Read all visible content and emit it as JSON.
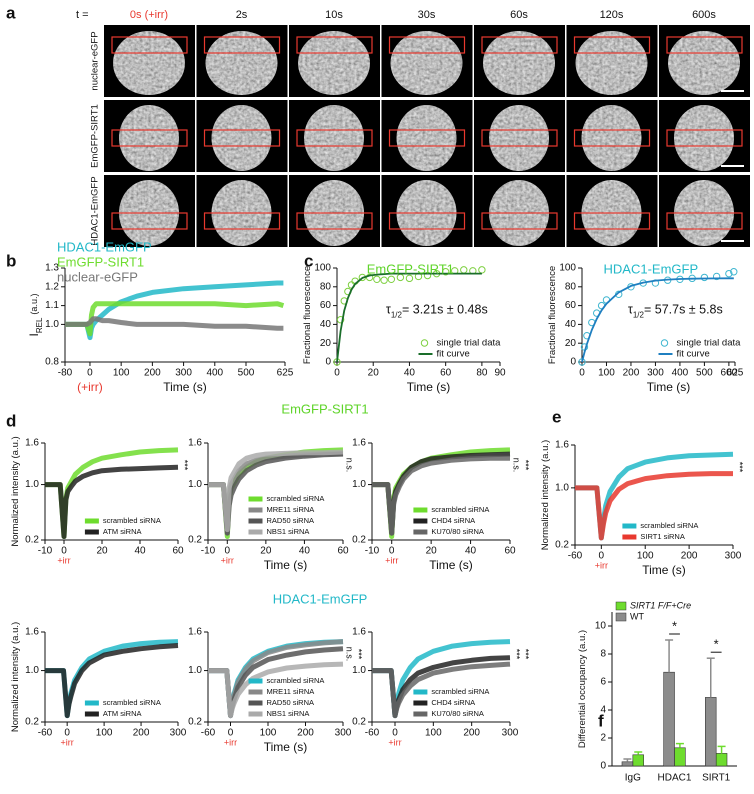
{
  "panel_labels": [
    "a",
    "b",
    "c",
    "d",
    "e",
    "f"
  ],
  "image_grid": {
    "t_label": "t =",
    "times": [
      "0s (+irr)",
      "2s",
      "10s",
      "30s",
      "60s",
      "120s",
      "600s"
    ],
    "rows": [
      "nuclear-eGFP",
      "EmGFP-SIRT1",
      "HDAC1-EmGFP"
    ]
  },
  "panel_d": {
    "top_title": "EmGFP-SIRT1",
    "top_color": "#5fd42a",
    "bottom_title": "HDAC1-EmGFP",
    "bottom_color": "#22b8c8"
  },
  "chart_data": [
    {
      "type": "line",
      "legend_style": "text",
      "bands": true,
      "irr_label": "(+irr)",
      "x": [
        -80,
        -40,
        -10,
        0,
        5,
        10,
        20,
        40,
        60,
        100,
        150,
        200,
        300,
        400,
        500,
        600,
        620
      ],
      "xlim": [
        -80,
        625
      ],
      "xticks": [
        -80,
        0,
        100,
        200,
        300,
        400,
        500,
        625
      ],
      "ylim": [
        0.8,
        1.3
      ],
      "yticks": [
        0.8,
        {
          "value": 1,
          "label": "1.0"
        },
        1.1,
        1.2,
        1.3
      ],
      "xlabel": "Time (s)",
      "ylabel": "I",
      "ylabel_sub": "REL",
      "ylabel_unit": "(a.u.)",
      "series": [
        {
          "name": "HDAC1-EmGFP",
          "color": "#22b8c8",
          "values": [
            1,
            1,
            1,
            0.93,
            0.98,
            1.0,
            1.02,
            1.05,
            1.08,
            1.12,
            1.15,
            1.17,
            1.19,
            1.2,
            1.21,
            1.22,
            1.22
          ]
        },
        {
          "name": "EmGFP-SIRT1",
          "color": "#6edc2e",
          "values": [
            1,
            1,
            1,
            0.95,
            1.05,
            1.09,
            1.11,
            1.11,
            1.11,
            1.11,
            1.11,
            1.11,
            1.11,
            1.11,
            1.1,
            1.11,
            1.1
          ]
        },
        {
          "name": "nuclear-eGFP",
          "color": "#777777",
          "values": [
            1,
            1,
            1,
            1.01,
            1.02,
            1.03,
            1.03,
            1.02,
            1.02,
            1.01,
            1.0,
            1.0,
            1.0,
            0.99,
            0.99,
            0.98,
            0.98
          ]
        }
      ]
    },
    {
      "type": "line",
      "title": "EmGFP-SIRT1",
      "title_color": "#5fd42a",
      "legend": "lower right",
      "annotation": "τ",
      "annotation_sub": "1/2",
      "annotation_rest": "= 3.21s ± 0.48s",
      "x": [
        0,
        2,
        4,
        6,
        8,
        10,
        14,
        18,
        22,
        26,
        30,
        35,
        40,
        45,
        50,
        55,
        60,
        65,
        70,
        75,
        80
      ],
      "xlim": [
        0,
        90
      ],
      "xticks": [
        0,
        20,
        40,
        60,
        80,
        90
      ],
      "ylim": [
        0,
        100
      ],
      "yticks": [
        0,
        20,
        40,
        60,
        80,
        100
      ],
      "xlabel": "Time (s)",
      "ylabel": "Fractional fluorescence",
      "series": [
        {
          "name": "single trial data",
          "color": "#7ed040",
          "marker": "o",
          "values": [
            0,
            45,
            65,
            75,
            82,
            86,
            90,
            90,
            88,
            87,
            88,
            90,
            89,
            91,
            92,
            94,
            96,
            97,
            98,
            97,
            98
          ]
        },
        {
          "name": "fit curve",
          "color": "#1a6e2a",
          "values": [
            0,
            33,
            54.5,
            68,
            77,
            83,
            89.5,
            92,
            93,
            93.5,
            94,
            94,
            94,
            94,
            94,
            94,
            94,
            94,
            94,
            94,
            94
          ]
        }
      ]
    },
    {
      "type": "line",
      "title": "HDAC1-EmGFP",
      "title_color": "#22b8c8",
      "legend": "lower right",
      "annotation": "τ",
      "annotation_sub": "1/2",
      "annotation_rest": "= 57.7s ± 5.8s",
      "x": [
        0,
        10,
        20,
        40,
        60,
        80,
        100,
        150,
        200,
        250,
        300,
        350,
        400,
        450,
        500,
        550,
        600,
        620
      ],
      "xlim": [
        0,
        625
      ],
      "xticks": [
        0,
        100,
        200,
        300,
        400,
        500,
        600,
        625
      ],
      "ylim": [
        0,
        100
      ],
      "yticks": [
        0,
        20,
        40,
        60,
        80,
        100
      ],
      "xlabel": "Time (s)",
      "ylabel": "Fractional fluorescence",
      "series": [
        {
          "name": "single trial data",
          "color": "#3fb6d0",
          "marker": "o",
          "values": [
            0,
            16,
            28,
            42,
            52,
            60,
            66,
            72,
            80,
            84,
            84,
            87,
            88,
            89,
            90,
            91,
            94,
            96
          ]
        },
        {
          "name": "fit curve",
          "color": "#1f7fc0",
          "values": [
            0,
            10,
            19,
            34,
            45.7,
            55,
            62,
            74,
            81,
            84.5,
            86.6,
            87.7,
            88.3,
            88.6,
            88.8,
            88.9,
            89,
            89
          ]
        }
      ]
    },
    {
      "type": "line",
      "bands": true,
      "legend": "lower right",
      "irr_label": "+irr",
      "significance": [
        "***"
      ],
      "x": [
        -10,
        -2,
        0,
        1,
        2,
        4,
        6,
        10,
        15,
        20,
        30,
        40,
        50,
        60
      ],
      "xlim": [
        -10,
        60
      ],
      "xticks": [
        -10,
        0,
        20,
        40,
        60
      ],
      "ylim": [
        0.2,
        1.6
      ],
      "yticks": [
        0.2,
        {
          "value": 1,
          "label": "1.0"
        },
        1.6
      ],
      "ylabel": "Normalized intensity (a.u.)",
      "series": [
        {
          "name": "scrambled siRNA",
          "color": "#6edc2e",
          "values": [
            1,
            1,
            0.25,
            0.8,
            0.95,
            1.05,
            1.15,
            1.25,
            1.33,
            1.38,
            1.43,
            1.47,
            1.49,
            1.5
          ]
        },
        {
          "name": "ATM siRNA",
          "color": "#222222",
          "values": [
            1,
            1,
            0.25,
            0.78,
            0.9,
            0.98,
            1.05,
            1.12,
            1.17,
            1.2,
            1.22,
            1.23,
            1.24,
            1.25
          ]
        }
      ]
    },
    {
      "type": "line",
      "bands": true,
      "legend": "lower right",
      "irr_label": "+irr",
      "significance": [
        "n.s."
      ],
      "x": [
        -10,
        -2,
        0,
        1,
        2,
        4,
        6,
        10,
        15,
        20,
        30,
        40,
        50,
        60
      ],
      "xlim": [
        -10,
        60
      ],
      "xticks": [
        -10,
        0,
        20,
        40,
        60
      ],
      "ylim": [
        0.2,
        1.6
      ],
      "yticks": [
        0.2,
        {
          "value": 1,
          "label": "1.0"
        },
        1.6
      ],
      "xlabel": "Time (s)",
      "series": [
        {
          "name": "scrambled siRNA",
          "color": "#6edc2e",
          "values": [
            1,
            1,
            0.25,
            0.8,
            0.95,
            1.05,
            1.15,
            1.25,
            1.33,
            1.38,
            1.43,
            1.47,
            1.49,
            1.5
          ]
        },
        {
          "name": "MRE11 siRNA",
          "color": "#888888",
          "values": [
            1,
            1,
            0.3,
            0.85,
            1.0,
            1.1,
            1.2,
            1.3,
            1.35,
            1.38,
            1.41,
            1.43,
            1.44,
            1.45
          ]
        },
        {
          "name": "RAD50 siRNA",
          "color": "#555555",
          "values": [
            1,
            1,
            0.3,
            0.7,
            0.85,
            0.98,
            1.08,
            1.2,
            1.28,
            1.33,
            1.38,
            1.41,
            1.43,
            1.44
          ]
        },
        {
          "name": "NBS1 siRNA",
          "color": "#aaaaaa",
          "values": [
            1,
            1,
            0.35,
            0.95,
            1.1,
            1.2,
            1.3,
            1.38,
            1.42,
            1.44,
            1.45,
            1.46,
            1.46,
            1.47
          ]
        }
      ]
    },
    {
      "type": "line",
      "bands": true,
      "legend": "lower right",
      "irr_label": "+irr",
      "significance": [
        "n.s.",
        "***"
      ],
      "x": [
        -10,
        -2,
        0,
        1,
        2,
        4,
        6,
        10,
        15,
        20,
        30,
        40,
        50,
        60
      ],
      "xlim": [
        -10,
        60
      ],
      "xticks": [
        -10,
        0,
        20,
        40,
        60
      ],
      "ylim": [
        0.2,
        1.6
      ],
      "yticks": [
        0.2,
        {
          "value": 1,
          "label": "1.0"
        },
        1.6
      ],
      "xlabel": "Time (s)",
      "series": [
        {
          "name": "scrambled siRNA",
          "color": "#6edc2e",
          "values": [
            1,
            1,
            0.25,
            0.8,
            0.95,
            1.05,
            1.15,
            1.25,
            1.33,
            1.38,
            1.43,
            1.47,
            1.49,
            1.5
          ]
        },
        {
          "name": "CHD4 siRNA",
          "color": "#222222",
          "values": [
            1,
            1,
            0.3,
            0.75,
            0.9,
            1.02,
            1.12,
            1.25,
            1.33,
            1.37,
            1.4,
            1.42,
            1.43,
            1.44
          ]
        },
        {
          "name": "KU70/80 siRNA",
          "color": "#666666",
          "values": [
            1,
            1,
            0.3,
            0.72,
            0.85,
            0.98,
            1.08,
            1.2,
            1.27,
            1.31,
            1.35,
            1.37,
            1.38,
            1.38
          ]
        }
      ]
    },
    {
      "type": "line",
      "bands": true,
      "legend": "lower right",
      "irr_label": "+irr",
      "x": [
        -60,
        -10,
        0,
        5,
        10,
        20,
        40,
        60,
        100,
        150,
        200,
        250,
        300
      ],
      "xlim": [
        -60,
        300
      ],
      "xticks": [
        -60,
        0,
        100,
        200,
        300
      ],
      "ylim": [
        0.2,
        1.6
      ],
      "yticks": [
        0.2,
        {
          "value": 1,
          "label": "1.0"
        },
        1.6
      ],
      "ylabel": "Normalized intensity (a.u.)",
      "series": [
        {
          "name": "scrambled siRNA",
          "color": "#22b8c8",
          "values": [
            1,
            1,
            0.3,
            0.5,
            0.65,
            0.85,
            1.05,
            1.18,
            1.3,
            1.38,
            1.42,
            1.44,
            1.45
          ]
        },
        {
          "name": "ATM siRNA",
          "color": "#222222",
          "values": [
            1,
            1,
            0.3,
            0.48,
            0.6,
            0.8,
            1.0,
            1.12,
            1.24,
            1.3,
            1.34,
            1.37,
            1.39
          ]
        }
      ]
    },
    {
      "type": "line",
      "bands": true,
      "legend": "lower right",
      "irr_label": "+irr",
      "significance": [
        "n.s.",
        "***"
      ],
      "x": [
        -60,
        -10,
        0,
        5,
        10,
        20,
        40,
        60,
        100,
        150,
        200,
        250,
        300
      ],
      "xlim": [
        -60,
        300
      ],
      "xticks": [
        -60,
        0,
        100,
        200,
        300
      ],
      "ylim": [
        0.2,
        1.6
      ],
      "yticks": [
        0.2,
        {
          "value": 1,
          "label": "1.0"
        },
        1.6
      ],
      "xlabel": "Time (s)",
      "series": [
        {
          "name": "scrambled siRNA",
          "color": "#22b8c8",
          "values": [
            1,
            1,
            0.3,
            0.5,
            0.65,
            0.85,
            1.05,
            1.18,
            1.3,
            1.38,
            1.42,
            1.44,
            1.45
          ]
        },
        {
          "name": "MRE11 siRNA",
          "color": "#888888",
          "values": [
            1,
            1,
            0.3,
            0.5,
            0.62,
            0.82,
            1.02,
            1.15,
            1.28,
            1.36,
            1.4,
            1.43,
            1.45
          ]
        },
        {
          "name": "RAD50 siRNA",
          "color": "#555555",
          "values": [
            1,
            1,
            0.3,
            0.45,
            0.56,
            0.74,
            0.93,
            1.05,
            1.17,
            1.24,
            1.29,
            1.32,
            1.34
          ]
        },
        {
          "name": "NBS1 siRNA",
          "color": "#aaaaaa",
          "values": [
            1,
            1,
            0.3,
            0.42,
            0.5,
            0.63,
            0.78,
            0.88,
            0.98,
            1.04,
            1.07,
            1.09,
            1.1
          ]
        }
      ]
    },
    {
      "type": "line",
      "bands": true,
      "legend": "lower right",
      "irr_label": "+irr",
      "significance": [
        "***",
        "***"
      ],
      "x": [
        -60,
        -10,
        0,
        5,
        10,
        20,
        40,
        60,
        100,
        150,
        200,
        250,
        300
      ],
      "xlim": [
        -60,
        300
      ],
      "xticks": [
        -60,
        0,
        100,
        200,
        300
      ],
      "ylim": [
        0.2,
        1.6
      ],
      "yticks": [
        0.2,
        {
          "value": 1,
          "label": "1.0"
        },
        1.6
      ],
      "series": [
        {
          "name": "scrambled siRNA",
          "color": "#22b8c8",
          "values": [
            1,
            1,
            0.3,
            0.5,
            0.65,
            0.85,
            1.05,
            1.18,
            1.3,
            1.38,
            1.42,
            1.44,
            1.45
          ]
        },
        {
          "name": "CHD4 siRNA",
          "color": "#222222",
          "values": [
            1,
            1,
            0.3,
            0.45,
            0.55,
            0.7,
            0.86,
            0.96,
            1.05,
            1.12,
            1.16,
            1.19,
            1.2
          ]
        },
        {
          "name": "KU70/80 siRNA",
          "color": "#666666",
          "values": [
            1,
            1,
            0.3,
            0.42,
            0.5,
            0.62,
            0.76,
            0.86,
            0.96,
            1.02,
            1.06,
            1.08,
            1.1
          ]
        }
      ]
    },
    {
      "type": "line",
      "bands": true,
      "legend": "lower right",
      "irr_label": "+irr",
      "significance": [
        "***"
      ],
      "x": [
        -60,
        -10,
        0,
        5,
        10,
        20,
        40,
        60,
        100,
        150,
        200,
        250,
        300
      ],
      "xlim": [
        -60,
        300
      ],
      "xticks": [
        -60,
        0,
        100,
        200,
        300
      ],
      "ylim": [
        0.2,
        1.6
      ],
      "yticks": [
        0.2,
        {
          "value": 1,
          "label": "1.0"
        },
        1.6
      ],
      "xlabel": "Time (s)",
      "ylabel": "Normalized intensity (a.u.)",
      "series": [
        {
          "name": "scrambled siRNA",
          "color": "#22b8c8",
          "values": [
            1,
            1,
            0.3,
            0.55,
            0.75,
            0.95,
            1.15,
            1.27,
            1.36,
            1.42,
            1.45,
            1.46,
            1.47
          ]
        },
        {
          "name": "SIRT1 siRNA",
          "color": "#e8382e",
          "values": [
            1,
            1,
            0.3,
            0.5,
            0.65,
            0.82,
            0.98,
            1.06,
            1.13,
            1.17,
            1.19,
            1.2,
            1.2
          ]
        }
      ]
    },
    {
      "type": "bar",
      "legend": "upper left",
      "categories": [
        "IgG",
        "HDAC1",
        "SIRT1"
      ],
      "ylim": [
        0,
        11
      ],
      "yticks": [
        0,
        2,
        4,
        6,
        8,
        10
      ],
      "ylabel": "Differential occupancy (a.u.)",
      "significance": [
        null,
        "*",
        "*"
      ],
      "series": [
        {
          "name": "SIRT1 F/F+Cre",
          "color": "#6edc2e",
          "values": [
            0.8,
            1.3,
            0.9
          ],
          "errors": [
            0.2,
            0.3,
            0.5
          ]
        },
        {
          "name": "WT",
          "color": "#8c8c8c",
          "values": [
            0.3,
            6.7,
            4.9
          ],
          "errors": [
            0.2,
            2.3,
            2.8
          ]
        }
      ]
    }
  ]
}
